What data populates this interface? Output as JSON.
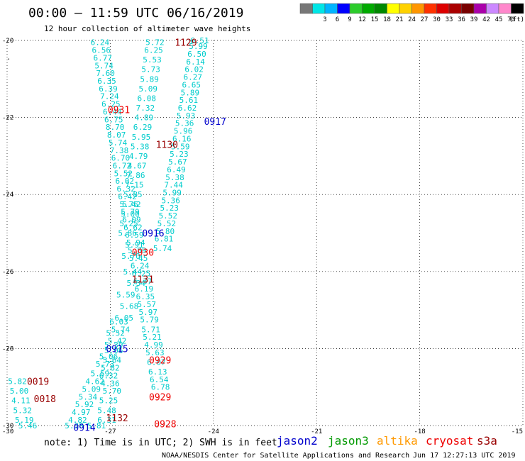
{
  "header": {
    "title": "00:00 – 11:59 UTC 06/16/2019",
    "subtitle": "12 hour collection of altimeter wave heights"
  },
  "scale": {
    "colors": [
      "#777777",
      "#00e6e6",
      "#00b4ff",
      "#0000ff",
      "#2ccc2c",
      "#00aa00",
      "#008800",
      "#ffff00",
      "#ffd200",
      "#ff9600",
      "#ff3200",
      "#dd0000",
      "#aa0000",
      "#780000",
      "#aa00aa",
      "#cc88ff",
      "#ff88cc",
      "#000000"
    ],
    "labels": [
      "3",
      "6",
      "9",
      "12",
      "15",
      "18",
      "21",
      "24",
      "27",
      "30",
      "33",
      "36",
      "39",
      "42",
      "45",
      "70"
    ],
    "unit": "(ft)"
  },
  "footer": {
    "note": "note: 1) Time is in UTC; 2) SWH is in feet",
    "credit": "NOAA/NESDIS Center for Satellite Applications and Research",
    "timestamp": "Jun 17 12:27:13 UTC 2019",
    "legend": [
      {
        "name": "jason2",
        "color": "#0000cc"
      },
      {
        "name": "jason3",
        "color": "#009900"
      },
      {
        "name": "altika",
        "color": "#ff9900"
      },
      {
        "name": "cryosat",
        "color": "#ee0000"
      },
      {
        "name": "s3a",
        "color": "#990000"
      }
    ]
  },
  "chart_data": {
    "type": "scatter",
    "title": "",
    "xlabel": "",
    "ylabel": "",
    "xlim": [
      -30,
      -15
    ],
    "ylim": [
      -30,
      -20
    ],
    "xticks": [
      -30,
      -27,
      -24,
      -21,
      -18,
      -15
    ],
    "yticks": [
      -20,
      -22,
      -24,
      -26,
      -28,
      -30
    ],
    "grid": true,
    "point_color": "#00cccc",
    "swh_points": [
      {
        "x": -27.3,
        "y": -20.05,
        "v": "6.24"
      },
      {
        "x": -27.26,
        "y": -20.25,
        "v": "6.56"
      },
      {
        "x": -27.22,
        "y": -20.45,
        "v": "6.77"
      },
      {
        "x": -27.18,
        "y": -20.65,
        "v": "5.74"
      },
      {
        "x": -27.14,
        "y": -20.85,
        "v": "7.60"
      },
      {
        "x": -27.1,
        "y": -21.05,
        "v": "6.35"
      },
      {
        "x": -27.06,
        "y": -21.25,
        "v": "6.39"
      },
      {
        "x": -27.02,
        "y": -21.45,
        "v": "7.24"
      },
      {
        "x": -26.98,
        "y": -21.65,
        "v": "6.25"
      },
      {
        "x": -26.94,
        "y": -21.85,
        "v": "6.44"
      },
      {
        "x": -26.9,
        "y": -22.05,
        "v": "6.75"
      },
      {
        "x": -26.86,
        "y": -22.25,
        "v": "8.70"
      },
      {
        "x": -26.82,
        "y": -22.45,
        "v": "8.07"
      },
      {
        "x": -26.78,
        "y": -22.65,
        "v": "5.74"
      },
      {
        "x": -26.74,
        "y": -22.85,
        "v": "7.38"
      },
      {
        "x": -26.7,
        "y": -23.05,
        "v": "6.70"
      },
      {
        "x": -26.66,
        "y": -23.25,
        "v": "6.72"
      },
      {
        "x": -26.62,
        "y": -23.45,
        "v": "5.52"
      },
      {
        "x": -26.58,
        "y": -23.65,
        "v": "6.02"
      },
      {
        "x": -26.54,
        "y": -23.85,
        "v": "6.32"
      },
      {
        "x": -26.5,
        "y": -24.05,
        "v": "6.42"
      },
      {
        "x": -26.46,
        "y": -24.25,
        "v": "5.76"
      },
      {
        "x": -26.42,
        "y": -24.45,
        "v": "5.79"
      },
      {
        "x": -26.38,
        "y": -24.65,
        "v": "6.09"
      },
      {
        "x": -26.34,
        "y": -24.85,
        "v": "6.62"
      },
      {
        "x": -26.3,
        "y": -25.05,
        "v": "6.59"
      },
      {
        "x": -26.26,
        "y": -25.25,
        "v": "5.94"
      },
      {
        "x": -26.22,
        "y": -25.45,
        "v": "5.89"
      },
      {
        "x": -26.18,
        "y": -25.65,
        "v": "5.45"
      },
      {
        "x": -26.14,
        "y": -25.85,
        "v": "6.24"
      },
      {
        "x": -26.1,
        "y": -26.05,
        "v": "6.25"
      },
      {
        "x": -26.06,
        "y": -26.25,
        "v": "6.37"
      },
      {
        "x": -26.02,
        "y": -26.45,
        "v": "6.19"
      },
      {
        "x": -25.98,
        "y": -26.65,
        "v": "6.35"
      },
      {
        "x": -25.94,
        "y": -26.85,
        "v": "5.57"
      },
      {
        "x": -25.9,
        "y": -27.05,
        "v": "5.97"
      },
      {
        "x": -25.86,
        "y": -27.25,
        "v": "5.79"
      },
      {
        "x": -25.82,
        "y": -27.5,
        "v": "5.71"
      },
      {
        "x": -25.78,
        "y": -27.7,
        "v": "5.21"
      },
      {
        "x": -25.74,
        "y": -27.9,
        "v": "4.99"
      },
      {
        "x": -25.7,
        "y": -28.1,
        "v": "5.63"
      },
      {
        "x": -25.66,
        "y": -28.35,
        "v": "6.07"
      },
      {
        "x": -25.62,
        "y": -28.6,
        "v": "6.13"
      },
      {
        "x": -25.58,
        "y": -28.8,
        "v": "6.54"
      },
      {
        "x": -25.54,
        "y": -29.0,
        "v": "6.78"
      },
      {
        "x": -25.7,
        "y": -20.05,
        "v": "5.72"
      },
      {
        "x": -25.74,
        "y": -20.25,
        "v": "6.25"
      },
      {
        "x": -25.78,
        "y": -20.5,
        "v": "5.53"
      },
      {
        "x": -25.82,
        "y": -20.75,
        "v": "5.73"
      },
      {
        "x": -25.86,
        "y": -21.0,
        "v": "5.89"
      },
      {
        "x": -25.9,
        "y": -21.25,
        "v": "5.09"
      },
      {
        "x": -25.94,
        "y": -21.5,
        "v": "6.08"
      },
      {
        "x": -25.98,
        "y": -21.75,
        "v": "7.32"
      },
      {
        "x": -26.02,
        "y": -22.0,
        "v": "4.89"
      },
      {
        "x": -26.06,
        "y": -22.25,
        "v": "6.29"
      },
      {
        "x": -26.1,
        "y": -22.5,
        "v": "5.95"
      },
      {
        "x": -26.14,
        "y": -22.75,
        "v": "5.38"
      },
      {
        "x": -26.18,
        "y": -23.0,
        "v": "4.79"
      },
      {
        "x": -26.22,
        "y": -23.25,
        "v": "4.67"
      },
      {
        "x": -26.26,
        "y": -23.5,
        "v": "7.86"
      },
      {
        "x": -26.3,
        "y": -23.75,
        "v": "7.15"
      },
      {
        "x": -26.34,
        "y": -24.0,
        "v": "5.85"
      },
      {
        "x": -26.38,
        "y": -24.25,
        "v": "5.42"
      },
      {
        "x": -26.42,
        "y": -24.5,
        "v": "5.00"
      },
      {
        "x": -26.46,
        "y": -24.75,
        "v": "5.25"
      },
      {
        "x": -26.5,
        "y": -25.0,
        "v": "5.86"
      },
      {
        "x": -24.4,
        "y": -20.0,
        "v": "6.51"
      },
      {
        "x": -24.44,
        "y": -20.15,
        "v": "5.99"
      },
      {
        "x": -24.48,
        "y": -20.35,
        "v": "6.50"
      },
      {
        "x": -24.52,
        "y": -20.55,
        "v": "6.14"
      },
      {
        "x": -24.56,
        "y": -20.75,
        "v": "6.02"
      },
      {
        "x": -24.6,
        "y": -20.95,
        "v": "6.27"
      },
      {
        "x": -24.64,
        "y": -21.15,
        "v": "6.65"
      },
      {
        "x": -24.68,
        "y": -21.35,
        "v": "5.89"
      },
      {
        "x": -24.72,
        "y": -21.55,
        "v": "5.61"
      },
      {
        "x": -24.76,
        "y": -21.75,
        "v": "6.62"
      },
      {
        "x": -24.8,
        "y": -21.95,
        "v": "5.93"
      },
      {
        "x": -24.84,
        "y": -22.15,
        "v": "5.36"
      },
      {
        "x": -24.88,
        "y": -22.35,
        "v": "5.96"
      },
      {
        "x": -24.92,
        "y": -22.55,
        "v": "6.16"
      },
      {
        "x": -24.96,
        "y": -22.75,
        "v": "5.59"
      },
      {
        "x": -25.0,
        "y": -22.95,
        "v": "5.23"
      },
      {
        "x": -25.04,
        "y": -23.15,
        "v": "5.67"
      },
      {
        "x": -25.08,
        "y": -23.35,
        "v": "6.49"
      },
      {
        "x": -25.12,
        "y": -23.55,
        "v": "5.38"
      },
      {
        "x": -25.16,
        "y": -23.75,
        "v": "7.44"
      },
      {
        "x": -25.2,
        "y": -23.95,
        "v": "5.99"
      },
      {
        "x": -25.24,
        "y": -24.15,
        "v": "5.36"
      },
      {
        "x": -25.28,
        "y": -24.35,
        "v": "5.23"
      },
      {
        "x": -25.32,
        "y": -24.55,
        "v": "5.52"
      },
      {
        "x": -25.36,
        "y": -24.75,
        "v": "5.52"
      },
      {
        "x": -25.4,
        "y": -24.95,
        "v": "5.80"
      },
      {
        "x": -25.44,
        "y": -25.15,
        "v": "6.81"
      },
      {
        "x": -25.48,
        "y": -25.4,
        "v": "5.74"
      },
      {
        "x": -26.3,
        "y": -25.3,
        "v": "5.91"
      },
      {
        "x": -26.4,
        "y": -25.6,
        "v": "5.70"
      },
      {
        "x": -26.35,
        "y": -26.0,
        "v": "5.44"
      },
      {
        "x": -26.25,
        "y": -26.3,
        "v": "5.34"
      },
      {
        "x": -26.55,
        "y": -26.6,
        "v": "5.59"
      },
      {
        "x": -26.45,
        "y": -26.9,
        "v": "5.68"
      },
      {
        "x": -26.6,
        "y": -27.2,
        "v": "6.05"
      },
      {
        "x": -26.7,
        "y": -27.5,
        "v": "5.74"
      },
      {
        "x": -26.8,
        "y": -27.8,
        "v": "5.42"
      },
      {
        "x": -26.9,
        "y": -28.05,
        "v": "5.06"
      },
      {
        "x": -26.95,
        "y": -28.3,
        "v": "5.64"
      },
      {
        "x": -27.0,
        "y": -28.5,
        "v": "5.82"
      },
      {
        "x": -26.75,
        "y": -27.3,
        "v": "6.03"
      },
      {
        "x": -26.85,
        "y": -27.6,
        "v": "5.52"
      },
      {
        "x": -26.9,
        "y": -27.9,
        "v": "5.39"
      },
      {
        "x": -27.05,
        "y": -28.2,
        "v": "5.06"
      },
      {
        "x": -27.15,
        "y": -28.4,
        "v": "5.73"
      },
      {
        "x": -27.3,
        "y": -28.65,
        "v": "5.59"
      },
      {
        "x": -27.45,
        "y": -28.85,
        "v": "4.62"
      },
      {
        "x": -27.55,
        "y": -29.05,
        "v": "5.09"
      },
      {
        "x": -27.65,
        "y": -29.25,
        "v": "5.34"
      },
      {
        "x": -27.75,
        "y": -29.45,
        "v": "5.92"
      },
      {
        "x": -27.85,
        "y": -29.65,
        "v": "4.97"
      },
      {
        "x": -27.95,
        "y": -29.85,
        "v": "4.82"
      },
      {
        "x": -28.05,
        "y": -30.0,
        "v": "5.38"
      },
      {
        "x": -27.05,
        "y": -28.7,
        "v": "6.32"
      },
      {
        "x": -27.0,
        "y": -28.9,
        "v": "4.36"
      },
      {
        "x": -26.95,
        "y": -29.1,
        "v": "5.70"
      },
      {
        "x": -27.05,
        "y": -29.35,
        "v": "5.25"
      },
      {
        "x": -27.1,
        "y": -29.6,
        "v": "5.48"
      },
      {
        "x": -27.1,
        "y": -29.85,
        "v": "6.31"
      },
      {
        "x": -27.4,
        "y": -30.0,
        "v": "5.81"
      },
      {
        "x": -29.7,
        "y": -28.85,
        "v": "5.82"
      },
      {
        "x": -29.65,
        "y": -29.1,
        "v": "5.00"
      },
      {
        "x": -29.6,
        "y": -29.35,
        "v": "4.11"
      },
      {
        "x": -29.55,
        "y": -29.6,
        "v": "5.32"
      },
      {
        "x": -29.5,
        "y": -29.85,
        "v": "5.19"
      },
      {
        "x": -29.4,
        "y": -30.0,
        "v": "5.46"
      }
    ],
    "pass_labels": [
      {
        "x": -24.8,
        "y": -20.05,
        "v": "1129",
        "color": "#990000"
      },
      {
        "x": -26.75,
        "y": -21.8,
        "v": "0931",
        "color": "#ee0000"
      },
      {
        "x": -23.95,
        "y": -22.1,
        "v": "0917",
        "color": "#0000cc"
      },
      {
        "x": -25.35,
        "y": -22.7,
        "v": "1130",
        "color": "#990000"
      },
      {
        "x": -25.75,
        "y": -25.0,
        "v": "0916",
        "color": "#0000cc"
      },
      {
        "x": -26.05,
        "y": -25.5,
        "v": "0930",
        "color": "#ee0000"
      },
      {
        "x": -26.05,
        "y": -26.2,
        "v": "1131",
        "color": "#990000"
      },
      {
        "x": -26.8,
        "y": -28.0,
        "v": "0915",
        "color": "#0000cc"
      },
      {
        "x": -25.55,
        "y": -28.3,
        "v": "0929",
        "color": "#ee0000"
      },
      {
        "x": -29.1,
        "y": -28.85,
        "v": "0019",
        "color": "#990000"
      },
      {
        "x": -28.9,
        "y": -29.3,
        "v": "0018",
        "color": "#990000"
      },
      {
        "x": -25.55,
        "y": -29.25,
        "v": "0929",
        "color": "#ee0000"
      },
      {
        "x": -26.8,
        "y": -29.8,
        "v": "1132",
        "color": "#990000"
      },
      {
        "x": -25.4,
        "y": -29.95,
        "v": "0928",
        "color": "#ee0000"
      },
      {
        "x": -27.75,
        "y": -30.05,
        "v": "0914",
        "color": "#0000cc"
      }
    ],
    "extra_markers": [
      {
        "x": -29.95,
        "y": -20.5,
        "v": "."
      }
    ]
  }
}
